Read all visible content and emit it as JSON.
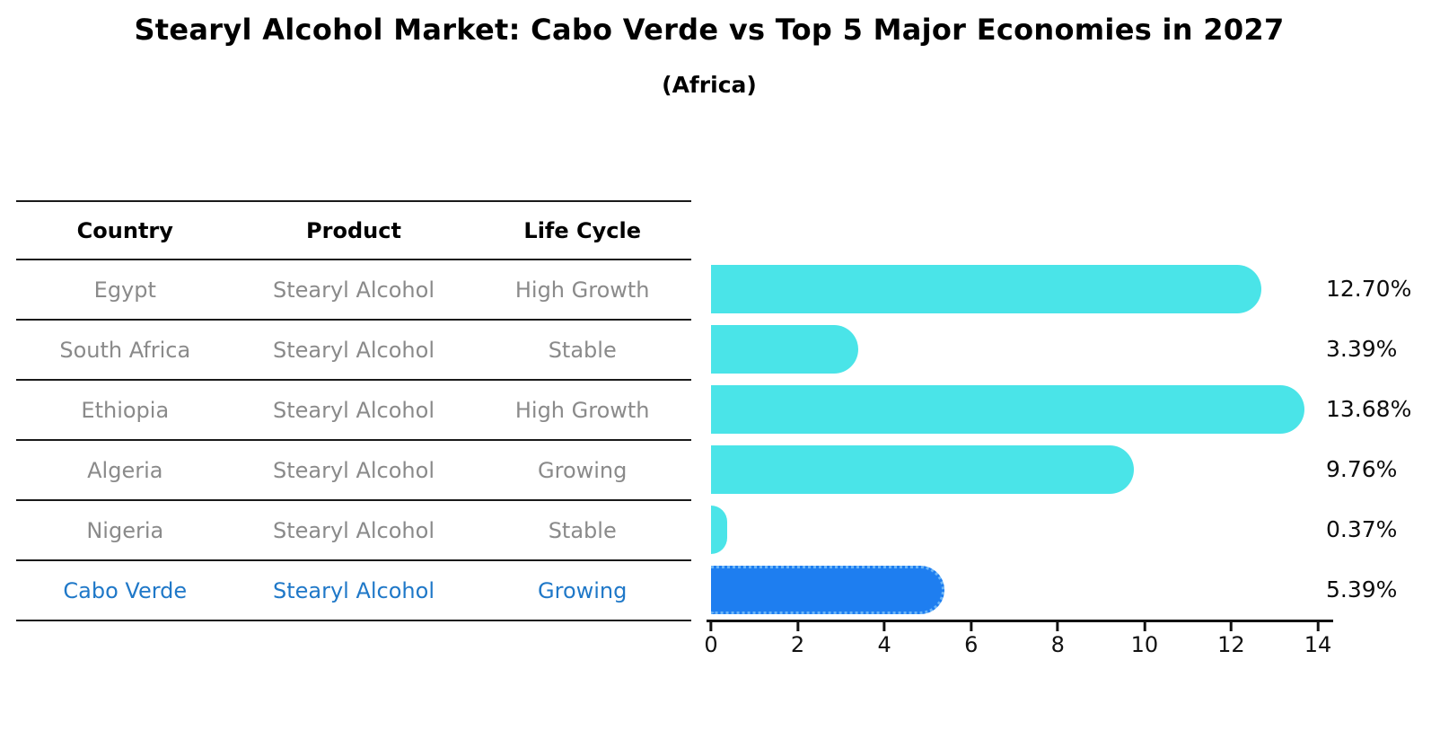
{
  "title": "Stearyl Alcohol Market: Cabo Verde vs Top 5 Major Economies in 2027",
  "subtitle": "(Africa)",
  "table": {
    "headers": [
      "Country",
      "Product",
      "Life Cycle"
    ],
    "rows": [
      {
        "country": "Egypt",
        "product": "Stearyl Alcohol",
        "life_cycle": "High Growth",
        "highlight": false
      },
      {
        "country": "South Africa",
        "product": "Stearyl Alcohol",
        "life_cycle": "Stable",
        "highlight": false
      },
      {
        "country": "Ethiopia",
        "product": "Stearyl Alcohol",
        "life_cycle": "High Growth",
        "highlight": false
      },
      {
        "country": "Algeria",
        "product": "Stearyl Alcohol",
        "life_cycle": "Growing",
        "highlight": false
      },
      {
        "country": "Nigeria",
        "product": "Stearyl Alcohol",
        "life_cycle": "Stable",
        "highlight": false
      },
      {
        "country": "Cabo Verde",
        "product": "Stearyl Alcohol",
        "life_cycle": "Growing",
        "highlight": true
      }
    ]
  },
  "chart_data": {
    "type": "bar",
    "orientation": "horizontal",
    "title": "Stearyl Alcohol Market: Cabo Verde vs Top 5 Major Economies in 2027 (Africa)",
    "categories": [
      "Egypt",
      "South Africa",
      "Ethiopia",
      "Algeria",
      "Nigeria",
      "Cabo Verde"
    ],
    "values": [
      12.7,
      3.39,
      13.68,
      9.76,
      0.37,
      5.39
    ],
    "value_labels": [
      "12.70%",
      "3.39%",
      "13.68%",
      "9.76%",
      "0.37%",
      "5.39%"
    ],
    "xlabel": "",
    "ylabel": "",
    "xlim": [
      0,
      14
    ],
    "x_ticks": [
      0,
      2,
      4,
      6,
      8,
      10,
      12,
      14
    ],
    "grid": false,
    "legend": false,
    "highlight_index": 5
  },
  "colors": {
    "bar": "#4AE4E8",
    "highlight_bar": "#1E7EF0",
    "highlight_bar_edge": "#6BB5F8",
    "highlight_text": "#1F78C8",
    "table_text": "#8A8A8A",
    "axis": "#111111"
  }
}
